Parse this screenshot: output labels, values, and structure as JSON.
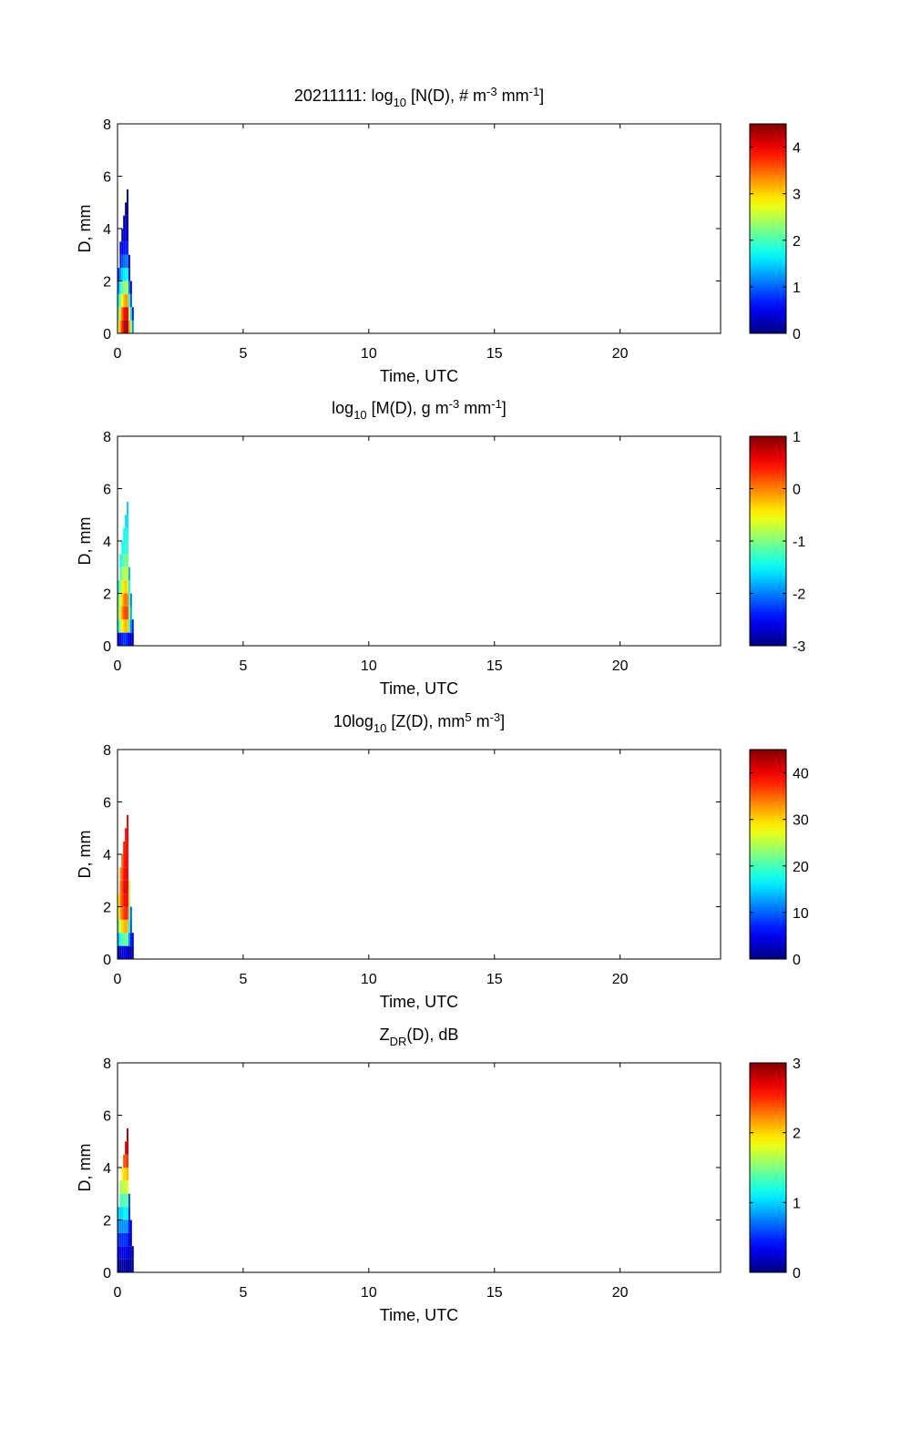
{
  "chart_data": [
    {
      "type": "heatmap",
      "title_parts": [
        {
          "text": "20211111: log",
          "role": "normal"
        },
        {
          "text": "10",
          "role": "sub"
        },
        {
          "text": " [N(D), # m",
          "role": "normal"
        },
        {
          "text": "-3",
          "role": "sup"
        },
        {
          "text": " mm",
          "role": "normal"
        },
        {
          "text": "-1",
          "role": "sup"
        },
        {
          "text": "]",
          "role": "normal"
        }
      ],
      "xlabel": "Time, UTC",
      "ylabel": "D, mm",
      "xlim": [
        0,
        24
      ],
      "ylim": [
        0,
        8
      ],
      "xticks": [
        0,
        5,
        10,
        15,
        20
      ],
      "yticks": [
        0,
        2,
        4,
        6,
        8
      ],
      "colorbar": {
        "range": [
          0,
          4.5
        ],
        "ticks": [
          0,
          1,
          2,
          3,
          4
        ],
        "colormap": "jet"
      },
      "columns": [
        {
          "t": 0.05,
          "d": [
            0.25,
            0.75,
            1.25,
            1.75,
            2.25
          ],
          "v": [
            2.6,
            2.2,
            1.7,
            1.2,
            0.8
          ]
        },
        {
          "t": 0.12,
          "d": [
            0.25,
            0.75,
            1.25,
            1.75,
            2.25,
            2.75,
            3.25
          ],
          "v": [
            3.3,
            3.0,
            2.4,
            1.8,
            1.2,
            0.7,
            0.4
          ]
        },
        {
          "t": 0.19,
          "d": [
            0.25,
            0.75,
            1.25,
            1.75,
            2.25,
            2.75,
            3.25,
            3.75
          ],
          "v": [
            3.8,
            3.5,
            2.8,
            2.1,
            1.5,
            0.9,
            0.5,
            0.3
          ]
        },
        {
          "t": 0.26,
          "d": [
            0.25,
            0.75,
            1.25,
            1.75,
            2.25,
            2.75,
            3.25,
            3.75,
            4.25
          ],
          "v": [
            4.2,
            3.9,
            3.1,
            2.3,
            1.6,
            1.0,
            0.6,
            0.3,
            0.2
          ]
        },
        {
          "t": 0.33,
          "d": [
            0.25,
            0.75,
            1.25,
            1.75,
            2.25,
            2.75,
            3.25,
            3.75,
            4.25,
            4.75
          ],
          "v": [
            4.4,
            4.1,
            3.3,
            2.4,
            1.7,
            1.1,
            0.7,
            0.4,
            0.2,
            0.1
          ]
        },
        {
          "t": 0.4,
          "d": [
            0.25,
            0.75,
            1.25,
            1.75,
            2.25,
            2.75,
            3.25,
            3.75,
            4.25,
            4.75,
            5.25
          ],
          "v": [
            4.3,
            4.0,
            3.2,
            2.4,
            1.7,
            1.1,
            0.7,
            0.4,
            0.3,
            0.1,
            0.05
          ]
        },
        {
          "t": 0.47,
          "d": [
            0.25,
            0.75,
            1.25,
            1.75,
            2.25,
            2.75
          ],
          "v": [
            3.2,
            2.6,
            1.8,
            1.1,
            0.6,
            0.3
          ]
        },
        {
          "t": 0.54,
          "d": [
            0.25,
            0.75,
            1.25,
            1.75
          ],
          "v": [
            2.4,
            1.6,
            0.9,
            0.4
          ]
        },
        {
          "t": 0.61,
          "d": [
            0.25,
            0.75
          ],
          "v": [
            1.2,
            0.6
          ]
        }
      ]
    },
    {
      "type": "heatmap",
      "title_parts": [
        {
          "text": "log",
          "role": "normal"
        },
        {
          "text": "10",
          "role": "sub"
        },
        {
          "text": " [M(D), g m",
          "role": "normal"
        },
        {
          "text": "-3",
          "role": "sup"
        },
        {
          "text": " mm",
          "role": "normal"
        },
        {
          "text": "-1",
          "role": "sup"
        },
        {
          "text": "]",
          "role": "normal"
        }
      ],
      "xlabel": "Time, UTC",
      "ylabel": "D, mm",
      "xlim": [
        0,
        24
      ],
      "ylim": [
        0,
        8
      ],
      "xticks": [
        0,
        5,
        10,
        15,
        20
      ],
      "yticks": [
        0,
        2,
        4,
        6,
        8
      ],
      "colorbar": {
        "range": [
          -3,
          1
        ],
        "ticks": [
          -3,
          -2,
          -1,
          0,
          1
        ],
        "colormap": "jet"
      },
      "columns": [
        {
          "t": 0.05,
          "d": [
            0.25,
            0.75,
            1.25,
            1.75,
            2.25
          ],
          "v": [
            -2.6,
            -1.4,
            -1.0,
            -1.1,
            -1.4
          ]
        },
        {
          "t": 0.12,
          "d": [
            0.25,
            0.75,
            1.25,
            1.75,
            2.25,
            2.75,
            3.25
          ],
          "v": [
            -2.5,
            -0.8,
            -0.4,
            -0.6,
            -0.9,
            -1.2,
            -1.5
          ]
        },
        {
          "t": 0.19,
          "d": [
            0.25,
            0.75,
            1.25,
            1.75,
            2.25,
            2.75,
            3.25,
            3.75
          ],
          "v": [
            -2.4,
            -0.5,
            -0.1,
            -0.3,
            -0.6,
            -1.0,
            -1.3,
            -1.5
          ]
        },
        {
          "t": 0.26,
          "d": [
            0.25,
            0.75,
            1.25,
            1.75,
            2.25,
            2.75,
            3.25,
            3.75,
            4.25
          ],
          "v": [
            -2.3,
            -0.3,
            0.2,
            0.0,
            -0.4,
            -0.8,
            -1.1,
            -1.4,
            -1.5
          ]
        },
        {
          "t": 0.33,
          "d": [
            0.25,
            0.75,
            1.25,
            1.75,
            2.25,
            2.75,
            3.25,
            3.75,
            4.25,
            4.75
          ],
          "v": [
            -2.3,
            -0.2,
            0.3,
            0.1,
            -0.3,
            -0.7,
            -1.0,
            -1.3,
            -1.4,
            -1.6
          ]
        },
        {
          "t": 0.4,
          "d": [
            0.25,
            0.75,
            1.25,
            1.75,
            2.25,
            2.75,
            3.25,
            3.75,
            4.25,
            4.75,
            5.25
          ],
          "v": [
            -2.4,
            -0.3,
            0.2,
            0.0,
            -0.4,
            -0.8,
            -1.1,
            -1.3,
            -1.4,
            -1.6,
            -1.7
          ]
        },
        {
          "t": 0.47,
          "d": [
            0.25,
            0.75,
            1.25,
            1.75,
            2.25,
            2.75
          ],
          "v": [
            -2.6,
            -1.2,
            -1.0,
            -1.2,
            -1.5,
            -1.8
          ]
        },
        {
          "t": 0.54,
          "d": [
            0.25,
            0.75,
            1.25,
            1.75
          ],
          "v": [
            -2.7,
            -2.0,
            -1.8,
            -2.0
          ]
        },
        {
          "t": 0.61,
          "d": [
            0.25,
            0.75
          ],
          "v": [
            -2.8,
            -2.4
          ]
        }
      ]
    },
    {
      "type": "heatmap",
      "title_parts": [
        {
          "text": "10log",
          "role": "normal"
        },
        {
          "text": "10",
          "role": "sub"
        },
        {
          "text": " [Z(D),  mm",
          "role": "normal"
        },
        {
          "text": "5",
          "role": "sup"
        },
        {
          "text": " m",
          "role": "normal"
        },
        {
          "text": "-3",
          "role": "sup"
        },
        {
          "text": "]",
          "role": "normal"
        }
      ],
      "xlabel": "Time, UTC",
      "ylabel": "D, mm",
      "xlim": [
        0,
        24
      ],
      "ylim": [
        0,
        8
      ],
      "xticks": [
        0,
        5,
        10,
        15,
        20
      ],
      "yticks": [
        0,
        2,
        4,
        6,
        8
      ],
      "colorbar": {
        "range": [
          0,
          45
        ],
        "ticks": [
          0,
          10,
          20,
          30,
          40
        ],
        "colormap": "jet"
      },
      "columns": [
        {
          "t": 0.05,
          "d": [
            0.25,
            0.75,
            1.25,
            1.75,
            2.25
          ],
          "v": [
            3,
            14,
            22,
            26,
            28
          ]
        },
        {
          "t": 0.12,
          "d": [
            0.25,
            0.75,
            1.25,
            1.75,
            2.25,
            2.75,
            3.25
          ],
          "v": [
            3,
            18,
            27,
            32,
            34,
            34,
            33
          ]
        },
        {
          "t": 0.19,
          "d": [
            0.25,
            0.75,
            1.25,
            1.75,
            2.25,
            2.75,
            3.25,
            3.75
          ],
          "v": [
            4,
            20,
            30,
            35,
            37,
            37,
            36,
            35
          ]
        },
        {
          "t": 0.26,
          "d": [
            0.25,
            0.75,
            1.25,
            1.75,
            2.25,
            2.75,
            3.25,
            3.75,
            4.25
          ],
          "v": [
            4,
            21,
            31,
            37,
            39,
            40,
            39,
            38,
            38
          ]
        },
        {
          "t": 0.33,
          "d": [
            0.25,
            0.75,
            1.25,
            1.75,
            2.25,
            2.75,
            3.25,
            3.75,
            4.25,
            4.75
          ],
          "v": [
            4,
            22,
            32,
            38,
            40,
            41,
            40,
            40,
            39,
            39
          ]
        },
        {
          "t": 0.4,
          "d": [
            0.25,
            0.75,
            1.25,
            1.75,
            2.25,
            2.75,
            3.25,
            3.75,
            4.25,
            4.75,
            5.25
          ],
          "v": [
            4,
            21,
            31,
            37,
            39,
            40,
            40,
            39,
            39,
            40,
            40
          ]
        },
        {
          "t": 0.47,
          "d": [
            0.25,
            0.75,
            1.25,
            1.75,
            2.25,
            2.75
          ],
          "v": [
            2,
            12,
            18,
            22,
            24,
            25
          ]
        },
        {
          "t": 0.54,
          "d": [
            0.25,
            0.75,
            1.25,
            1.75
          ],
          "v": [
            2,
            6,
            9,
            10
          ]
        },
        {
          "t": 0.61,
          "d": [
            0.25,
            0.75
          ],
          "v": [
            1,
            4
          ]
        }
      ]
    },
    {
      "type": "heatmap",
      "title_parts": [
        {
          "text": "Z",
          "role": "normal"
        },
        {
          "text": "DR",
          "role": "sub"
        },
        {
          "text": "(D), dB",
          "role": "normal"
        }
      ],
      "xlabel": "Time, UTC",
      "ylabel": "D, mm",
      "xlim": [
        0,
        24
      ],
      "ylim": [
        0,
        8
      ],
      "xticks": [
        0,
        5,
        10,
        15,
        20
      ],
      "yticks": [
        0,
        2,
        4,
        6,
        8
      ],
      "colorbar": {
        "range": [
          0,
          3
        ],
        "ticks": [
          0,
          1,
          2,
          3
        ],
        "colormap": "jet"
      },
      "columns": [
        {
          "t": 0.05,
          "d": [
            0.25,
            0.75,
            1.25,
            1.75,
            2.25
          ],
          "v": [
            0.1,
            0.3,
            0.5,
            0.8,
            1.0
          ]
        },
        {
          "t": 0.12,
          "d": [
            0.25,
            0.75,
            1.25,
            1.75,
            2.25,
            2.75,
            3.25
          ],
          "v": [
            0.1,
            0.3,
            0.5,
            0.8,
            1.0,
            1.3,
            1.6
          ]
        },
        {
          "t": 0.19,
          "d": [
            0.25,
            0.75,
            1.25,
            1.75,
            2.25,
            2.75,
            3.25,
            3.75
          ],
          "v": [
            0.1,
            0.3,
            0.5,
            0.8,
            1.0,
            1.3,
            1.6,
            1.9
          ]
        },
        {
          "t": 0.26,
          "d": [
            0.25,
            0.75,
            1.25,
            1.75,
            2.25,
            2.75,
            3.25,
            3.75,
            4.25
          ],
          "v": [
            0.1,
            0.3,
            0.5,
            0.8,
            1.1,
            1.4,
            1.7,
            2.0,
            2.4
          ]
        },
        {
          "t": 0.33,
          "d": [
            0.25,
            0.75,
            1.25,
            1.75,
            2.25,
            2.75,
            3.25,
            3.75,
            4.25,
            4.75
          ],
          "v": [
            0.1,
            0.3,
            0.5,
            0.8,
            1.1,
            1.4,
            1.7,
            2.0,
            2.4,
            2.7
          ]
        },
        {
          "t": 0.4,
          "d": [
            0.25,
            0.75,
            1.25,
            1.75,
            2.25,
            2.75,
            3.25,
            3.75,
            4.25,
            4.75,
            5.25
          ],
          "v": [
            0.1,
            0.3,
            0.5,
            0.8,
            1.1,
            1.4,
            1.8,
            2.1,
            2.5,
            2.8,
            2.9
          ]
        },
        {
          "t": 0.47,
          "d": [
            0.25,
            0.75,
            1.25,
            1.75,
            2.25,
            2.75
          ],
          "v": [
            0.1,
            0.2,
            0.3,
            0.4,
            0.5,
            0.6
          ]
        },
        {
          "t": 0.54,
          "d": [
            0.25,
            0.75,
            1.25,
            1.75
          ],
          "v": [
            0.1,
            0.2,
            0.2,
            0.3
          ]
        },
        {
          "t": 0.61,
          "d": [
            0.25,
            0.75
          ],
          "v": [
            0.1,
            0.1
          ]
        }
      ]
    }
  ]
}
